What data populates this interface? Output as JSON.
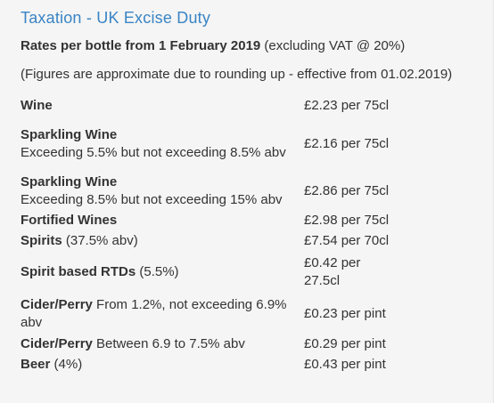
{
  "title": "Taxation - UK Excise Duty",
  "subtitle": {
    "bold": "Rates per bottle from 1 February 2019",
    "rest": " (excluding VAT @ 20%)"
  },
  "note": "(Figures are approximate due to rounding up - effective from 01.02.2019)",
  "rows": [
    {
      "name": "Wine",
      "desc": "",
      "rate": "£2.23 per 75cl"
    },
    {
      "name": "Sparkling Wine",
      "desc": "Exceeding 5.5% but not exceeding 8.5% abv",
      "rate": "£2.16 per 75cl"
    },
    {
      "name": "Sparkling Wine",
      "desc": "Exceeding 8.5% but not exceeding 15% abv",
      "rate": "£2.86 per 75cl"
    },
    {
      "name": "Fortified Wines",
      "desc": "",
      "rate": "£2.98 per 75cl"
    },
    {
      "name": "Spirits",
      "desc": " (37.5% abv)",
      "rate": "£7.54 per 70cl"
    },
    {
      "name": "Spirit based RTDs",
      "desc": " (5.5%)",
      "rate": "£0.42 per 27.5cl"
    },
    {
      "name": "Cider/Perry",
      "desc": " From 1.2%, not exceeding 6.9% abv",
      "rate": "£0.23 per pint"
    },
    {
      "name": "Cider/Perry",
      "desc": " Between 6.9 to 7.5% abv",
      "rate": "£0.29 per pint"
    },
    {
      "name": "Beer",
      "desc": " (4%)",
      "rate": "£0.43 per pint"
    }
  ]
}
